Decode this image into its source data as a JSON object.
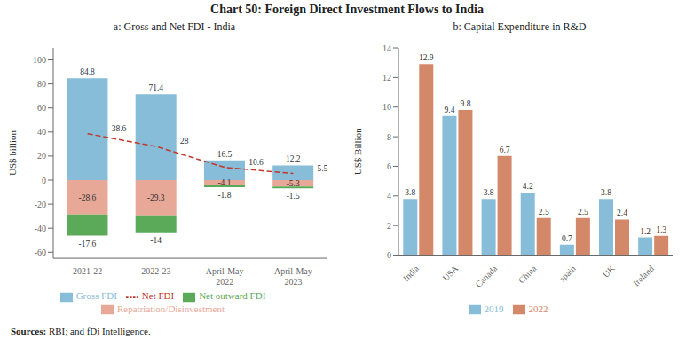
{
  "title": "Chart 50: Foreign Direct Investment Flows to India",
  "annotations": [
    "Sources:",
    " RBI; and fDi Intelligence."
  ],
  "chart_data": [
    {
      "type": "bar",
      "title": "a: Gross and Net FDI - India",
      "y_label": "US$ billion",
      "categories": [
        "2021-22",
        "2022-23",
        "April-May\n2022",
        "April-May\n2023"
      ],
      "series": [
        {
          "name": "Gross FDI",
          "color": "#87bdd8",
          "values": [
            84.8,
            71.4,
            16.5,
            12.2
          ]
        },
        {
          "name": "Repatriation/Disinvestment",
          "color": "#e8a898",
          "values": [
            -28.6,
            -29.3,
            -4.1,
            -5.3
          ]
        },
        {
          "name": "Net outward FDI",
          "color": "#5aaa5a",
          "values": [
            -17.6,
            -14.0,
            -1.8,
            -1.5
          ]
        },
        {
          "name": "Net FDI",
          "type": "line",
          "line_style": "dashed",
          "color": "#c0392b",
          "values": [
            38.6,
            28.0,
            10.6,
            5.5
          ]
        }
      ],
      "stacked": true,
      "data_labels": true,
      "grid": false,
      "legend": "bottom",
      "ylim": [
        -65,
        110
      ],
      "yticks": [
        -60,
        -40,
        -20,
        0,
        20,
        40,
        60,
        80,
        100
      ]
    },
    {
      "type": "bar",
      "title": "b: Capital Expenditure in R&D",
      "y_label": "US$ Billion",
      "categories": [
        "India",
        "USA",
        "Canada",
        "China",
        "spain",
        "UK",
        "Ireland"
      ],
      "series": [
        {
          "name": "2019",
          "color": "#87bdd8",
          "values": [
            3.8,
            9.4,
            3.8,
            4.2,
            0.7,
            3.8,
            1.2
          ]
        },
        {
          "name": "2022",
          "color": "#d4886a",
          "values": [
            12.9,
            9.8,
            6.7,
            2.5,
            2.5,
            2.4,
            1.3
          ]
        }
      ],
      "stacked": false,
      "data_labels": true,
      "grid": false,
      "legend": "bottom",
      "ylim": [
        0,
        14
      ],
      "yticks": [
        0,
        2,
        4,
        6,
        8,
        10,
        12,
        14
      ]
    }
  ]
}
